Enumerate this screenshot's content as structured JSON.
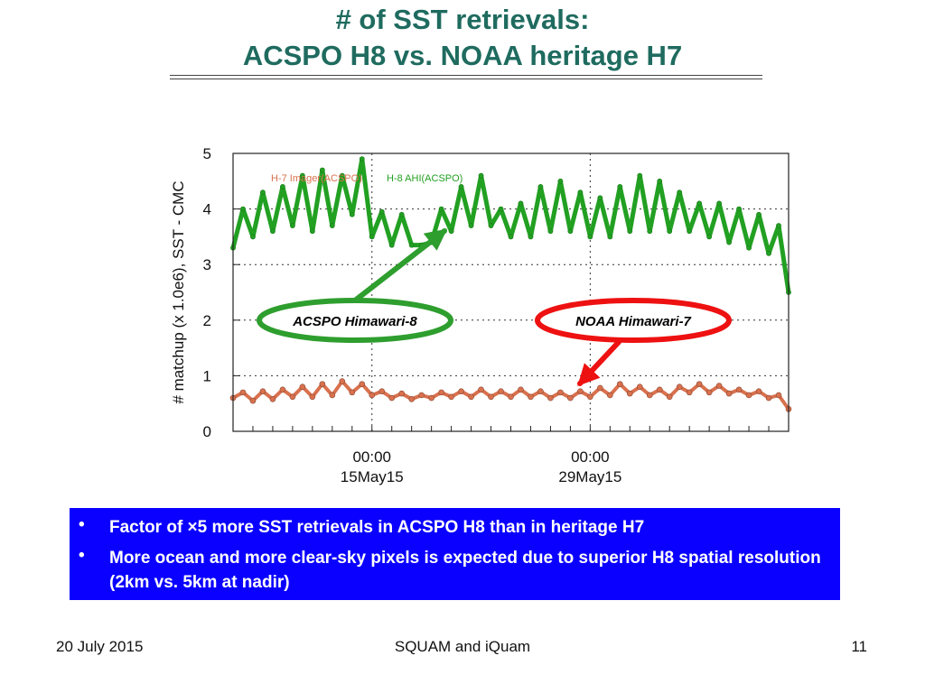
{
  "slide": {
    "title_line1": "# of SST retrievals:",
    "title_line2": "ACSPO H8 vs. NOAA heritage H7",
    "bullets": [
      "Factor of ×5 more SST retrievals in ACSPO H8 than in heritage H7",
      "More ocean and more clear-sky pixels is expected due to superior H8 spatial resolution (2km vs. 5km at nadir)"
    ],
    "bullet_marker": "•",
    "footer_left": "20 July 2015",
    "footer_center": "SQUAM and iQuam",
    "footer_right": "11"
  },
  "colors": {
    "title": "#1f6b5f",
    "h8_series": "#22a022",
    "h7_series": "#d9714e",
    "h8_oval": "#2e9e2e",
    "h7_oval": "#ee1111",
    "bullet_box": "#0a00ff"
  },
  "chart_data": {
    "type": "line",
    "ylabel": "# matchup (x 1.0e6),  SST - CMC",
    "xlim": [
      0,
      28
    ],
    "ylim": [
      0,
      5
    ],
    "yticks": [
      0,
      1,
      2,
      3,
      4,
      5
    ],
    "xticks": [
      {
        "x": 7,
        "line1": "00:00",
        "line2": "15May15"
      },
      {
        "x": 18,
        "line1": "00:00",
        "line2": "29May15"
      }
    ],
    "grid": true,
    "legend": [
      {
        "label": "H-7 Imager(ACSPO)",
        "color": "#d9714e"
      },
      {
        "label": "H-8 AHI(ACSPO)",
        "color": "#22a022"
      }
    ],
    "annotations": [
      {
        "label": "ACSPO Himawari-8",
        "series": "H-8 AHI(ACSPO)"
      },
      {
        "label": "NOAA Himawari-7",
        "series": "H-7 Imager(ACSPO)"
      }
    ],
    "series": [
      {
        "name": "H-8 AHI(ACSPO)",
        "x": [
          0,
          0.5,
          1,
          1.5,
          2,
          2.5,
          3,
          3.5,
          4,
          4.5,
          5,
          5.5,
          6,
          6.5,
          7,
          7.5,
          8,
          8.5,
          9,
          9.5,
          10,
          10.5,
          11,
          11.5,
          12,
          12.5,
          13,
          13.5,
          14,
          14.5,
          15,
          15.5,
          16,
          16.5,
          17,
          17.5,
          18,
          18.5,
          19,
          19.5,
          20,
          20.5,
          21,
          21.5,
          22,
          22.5,
          23,
          23.5,
          24,
          24.5,
          25,
          25.5,
          26,
          26.5,
          27,
          27.5,
          28
        ],
        "values": [
          3.3,
          4.0,
          3.5,
          4.3,
          3.6,
          4.4,
          3.7,
          4.6,
          3.6,
          4.7,
          3.7,
          4.6,
          3.9,
          4.9,
          3.5,
          3.95,
          3.35,
          3.9,
          3.35,
          3.35,
          3.4,
          4.0,
          3.6,
          4.4,
          3.7,
          4.6,
          3.7,
          4.0,
          3.5,
          4.1,
          3.5,
          4.4,
          3.6,
          4.5,
          3.6,
          4.3,
          3.5,
          4.2,
          3.5,
          4.4,
          3.6,
          4.6,
          3.6,
          4.5,
          3.6,
          4.3,
          3.6,
          4.1,
          3.5,
          4.1,
          3.4,
          4.0,
          3.3,
          3.9,
          3.2,
          3.7,
          2.5
        ]
      },
      {
        "name": "H-7 Imager(ACSPO)",
        "x": [
          0,
          0.5,
          1,
          1.5,
          2,
          2.5,
          3,
          3.5,
          4,
          4.5,
          5,
          5.5,
          6,
          6.5,
          7,
          7.5,
          8,
          8.5,
          9,
          9.5,
          10,
          10.5,
          11,
          11.5,
          12,
          12.5,
          13,
          13.5,
          14,
          14.5,
          15,
          15.5,
          16,
          16.5,
          17,
          17.5,
          18,
          18.5,
          19,
          19.5,
          20,
          20.5,
          21,
          21.5,
          22,
          22.5,
          23,
          23.5,
          24,
          24.5,
          25,
          25.5,
          26,
          26.5,
          27,
          27.5,
          28
        ],
        "values": [
          0.6,
          0.7,
          0.55,
          0.72,
          0.58,
          0.75,
          0.62,
          0.8,
          0.62,
          0.85,
          0.65,
          0.9,
          0.7,
          0.85,
          0.65,
          0.72,
          0.6,
          0.68,
          0.58,
          0.65,
          0.6,
          0.7,
          0.62,
          0.72,
          0.62,
          0.75,
          0.62,
          0.72,
          0.62,
          0.75,
          0.62,
          0.72,
          0.6,
          0.7,
          0.6,
          0.72,
          0.62,
          0.78,
          0.65,
          0.85,
          0.68,
          0.8,
          0.65,
          0.75,
          0.62,
          0.8,
          0.7,
          0.85,
          0.7,
          0.82,
          0.68,
          0.75,
          0.65,
          0.72,
          0.6,
          0.65,
          0.4
        ]
      }
    ]
  }
}
